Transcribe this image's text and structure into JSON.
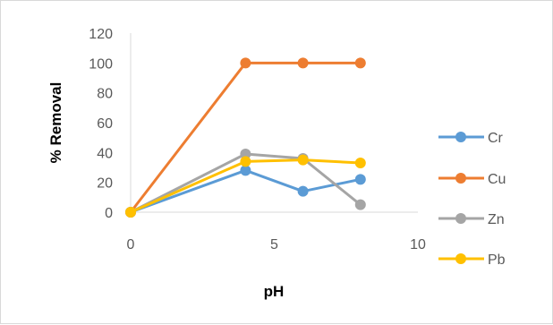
{
  "chart_data": {
    "type": "line",
    "xlabel": "pH",
    "ylabel": "% Removal",
    "xlim": [
      0,
      10
    ],
    "ylim": [
      0,
      120
    ],
    "xticks": [
      0,
      5,
      10
    ],
    "yticks": [
      0,
      20,
      40,
      60,
      80,
      100,
      120
    ],
    "grid": false,
    "legend_position": "right",
    "series": [
      {
        "name": "Cr",
        "color": "#5B9BD5",
        "x": [
          0,
          4,
          6,
          8
        ],
        "y": [
          0,
          28,
          14,
          22
        ]
      },
      {
        "name": "Cu",
        "color": "#ED7D31",
        "x": [
          0,
          4,
          6,
          8
        ],
        "y": [
          0,
          100,
          100,
          100
        ]
      },
      {
        "name": "Zn",
        "color": "#A5A5A5",
        "x": [
          0,
          4,
          6,
          8
        ],
        "y": [
          0,
          39,
          36,
          5
        ]
      },
      {
        "name": "Pb",
        "color": "#FFC000",
        "x": [
          0,
          4,
          6,
          8
        ],
        "y": [
          0,
          34,
          35,
          33
        ]
      }
    ]
  }
}
